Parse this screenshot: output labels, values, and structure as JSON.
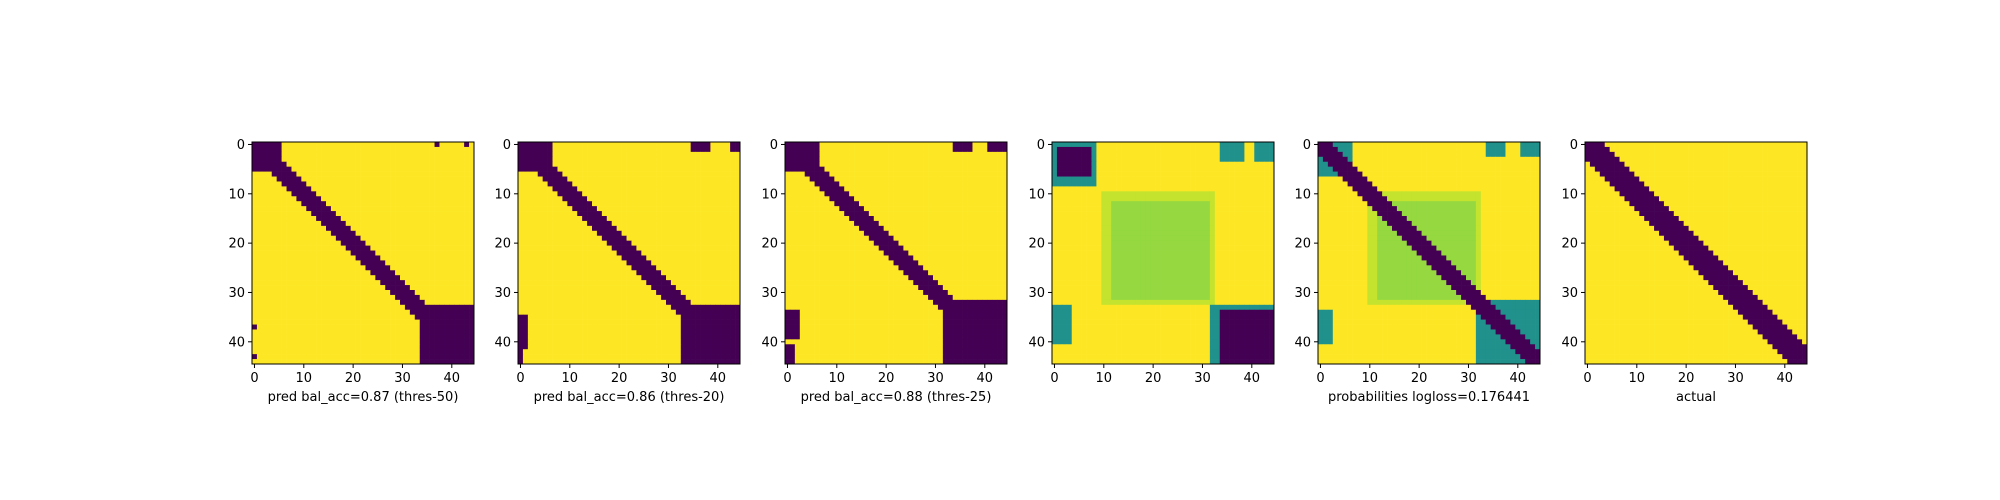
{
  "colors": {
    "low": "#440154",
    "teal": "#21918c",
    "mid": "#95d840",
    "mid_light": "#c3e32e",
    "high": "#fde725"
  },
  "chart_data": [
    {
      "type": "heatmap",
      "xlabel": "pred bal_acc=0.87 (thres-50)",
      "xticks": [
        0,
        10,
        20,
        30,
        40
      ],
      "yticks": [
        0,
        10,
        20,
        30,
        40
      ],
      "xlim": [
        0,
        44
      ],
      "ylim": [
        44,
        0
      ],
      "matrix_size": 45,
      "band_halfwidth": 2,
      "regions": [
        {
          "r0": 0,
          "r1": 5,
          "c0": 0,
          "c1": 5,
          "v": 0
        },
        {
          "r0": 33,
          "r1": 44,
          "c0": 34,
          "c1": 44,
          "v": 0
        },
        {
          "r0": 39,
          "r1": 44,
          "c0": 38,
          "c1": 44,
          "v": 0
        },
        {
          "r0": 37,
          "r1": 37,
          "c0": 0,
          "c1": 0,
          "v": 0
        },
        {
          "r0": 43,
          "r1": 43,
          "c0": 0,
          "c1": 0,
          "v": 0
        },
        {
          "r0": 0,
          "r1": 0,
          "c0": 37,
          "c1": 37,
          "v": 0
        },
        {
          "r0": 0,
          "r1": 0,
          "c0": 43,
          "c1": 43,
          "v": 0
        }
      ]
    },
    {
      "type": "heatmap",
      "xlabel": "pred bal_acc=0.86 (thres-20)",
      "xticks": [
        0,
        10,
        20,
        30,
        40
      ],
      "yticks": [
        0,
        10,
        20,
        30,
        40
      ],
      "xlim": [
        0,
        44
      ],
      "ylim": [
        44,
        0
      ],
      "matrix_size": 45,
      "band_halfwidth": 2,
      "regions": [
        {
          "r0": 0,
          "r1": 5,
          "c0": 0,
          "c1": 6,
          "v": 0
        },
        {
          "r0": 33,
          "r1": 44,
          "c0": 33,
          "c1": 44,
          "v": 0
        },
        {
          "r0": 38,
          "r1": 44,
          "c0": 38,
          "c1": 44,
          "v": 0
        },
        {
          "r0": 35,
          "r1": 41,
          "c0": 0,
          "c1": 1,
          "v": 0
        },
        {
          "r0": 42,
          "r1": 44,
          "c0": 0,
          "c1": 0,
          "v": 0
        },
        {
          "r0": 0,
          "r1": 1,
          "c0": 35,
          "c1": 38,
          "v": 0
        },
        {
          "r0": 0,
          "r1": 1,
          "c0": 43,
          "c1": 44,
          "v": 0
        }
      ]
    },
    {
      "type": "heatmap",
      "xlabel": "pred bal_acc=0.88 (thres-25)",
      "xticks": [
        0,
        10,
        20,
        30,
        40
      ],
      "yticks": [
        0,
        10,
        20,
        30,
        40
      ],
      "xlim": [
        0,
        44
      ],
      "ylim": [
        44,
        0
      ],
      "matrix_size": 45,
      "band_halfwidth": 2,
      "regions": [
        {
          "r0": 0,
          "r1": 5,
          "c0": 0,
          "c1": 6,
          "v": 0
        },
        {
          "r0": 32,
          "r1": 44,
          "c0": 32,
          "c1": 44,
          "v": 0
        },
        {
          "r0": 38,
          "r1": 44,
          "c0": 37,
          "c1": 44,
          "v": 0
        },
        {
          "r0": 34,
          "r1": 39,
          "c0": 0,
          "c1": 2,
          "v": 0
        },
        {
          "r0": 41,
          "r1": 44,
          "c0": 0,
          "c1": 1,
          "v": 0
        },
        {
          "r0": 0,
          "r1": 1,
          "c0": 34,
          "c1": 37,
          "v": 0
        },
        {
          "r0": 0,
          "r1": 1,
          "c0": 41,
          "c1": 44,
          "v": 0
        }
      ]
    },
    {
      "type": "heatmap",
      "xlabel": "",
      "xticks": [
        0,
        10,
        20,
        30,
        40
      ],
      "yticks": [
        0,
        10,
        20,
        30,
        40
      ],
      "xlim": [
        0,
        44
      ],
      "ylim": [
        44,
        0
      ],
      "matrix_size": 45,
      "band_halfwidth": -1,
      "regions": [
        {
          "r0": 10,
          "r1": 32,
          "c0": 10,
          "c1": 32,
          "v": 0.9
        },
        {
          "r0": 12,
          "r1": 31,
          "c0": 12,
          "c1": 31,
          "v": 0.72
        },
        {
          "r0": 0,
          "r1": 8,
          "c0": 0,
          "c1": 8,
          "v": 0.5
        },
        {
          "r0": 1,
          "r1": 6,
          "c0": 1,
          "c1": 7,
          "v": 0.0
        },
        {
          "r0": 33,
          "r1": 44,
          "c0": 32,
          "c1": 44,
          "v": 0.5
        },
        {
          "r0": 34,
          "r1": 44,
          "c0": 34,
          "c1": 44,
          "v": 0.0
        },
        {
          "r0": 33,
          "r1": 40,
          "c0": 0,
          "c1": 3,
          "v": 0.5
        },
        {
          "r0": 0,
          "r1": 3,
          "c0": 34,
          "c1": 38,
          "v": 0.5
        },
        {
          "r0": 0,
          "r1": 3,
          "c0": 41,
          "c1": 44,
          "v": 0.5
        }
      ]
    },
    {
      "type": "heatmap",
      "xlabel": "probabilities logloss=0.176441",
      "xticks": [
        0,
        10,
        20,
        30,
        40
      ],
      "yticks": [
        0,
        10,
        20,
        30,
        40
      ],
      "xlim": [
        0,
        44
      ],
      "ylim": [
        44,
        0
      ],
      "matrix_size": 45,
      "band_halfwidth": 2,
      "regions": [
        {
          "r0": 10,
          "r1": 32,
          "c0": 10,
          "c1": 32,
          "v": 0.9
        },
        {
          "r0": 12,
          "r1": 31,
          "c0": 12,
          "c1": 31,
          "v": 0.72
        },
        {
          "r0": 0,
          "r1": 6,
          "c0": 0,
          "c1": 6,
          "v": 0.5
        },
        {
          "r0": 32,
          "r1": 44,
          "c0": 32,
          "c1": 44,
          "v": 0.5
        },
        {
          "r0": 34,
          "r1": 40,
          "c0": 0,
          "c1": 2,
          "v": 0.5
        },
        {
          "r0": 0,
          "r1": 2,
          "c0": 34,
          "c1": 37,
          "v": 0.5
        },
        {
          "r0": 0,
          "r1": 2,
          "c0": 41,
          "c1": 44,
          "v": 0.5
        }
      ]
    },
    {
      "type": "heatmap",
      "xlabel": "actual",
      "xticks": [
        0,
        10,
        20,
        30,
        40
      ],
      "yticks": [
        0,
        10,
        20,
        30,
        40
      ],
      "xlim": [
        0,
        44
      ],
      "ylim": [
        44,
        0
      ],
      "matrix_size": 45,
      "band_halfwidth": 3,
      "regions": []
    }
  ]
}
